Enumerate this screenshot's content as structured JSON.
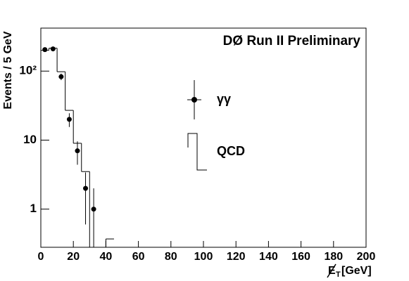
{
  "chart_data": {
    "type": "histogram",
    "title": "DØ Run II Preliminary",
    "y_label": "Events / 5 GeV",
    "x_label": {
      "symbol": "E",
      "subscript": "T",
      "unit": "[GeV]"
    },
    "xlim": [
      0,
      200
    ],
    "xticks": [
      0,
      20,
      40,
      60,
      80,
      100,
      120,
      140,
      160,
      180,
      200
    ],
    "ylim": [
      0.28,
      420
    ],
    "yticks": [
      1,
      10,
      {
        "value": 100,
        "label": "10²"
      }
    ],
    "log_y": true,
    "bins": [
      0,
      5,
      10,
      15,
      20,
      25,
      30,
      35,
      40,
      45
    ],
    "series": [
      {
        "name": "QCD",
        "color": "#000000",
        "kind": "step",
        "counts": [
          200,
          215,
          98,
          27,
          9,
          3.5,
          0,
          0,
          0.37
        ]
      },
      {
        "name": "γγ",
        "color": "#000000",
        "kind": "points",
        "x": [
          2.5,
          7.5,
          12.5,
          17.5,
          22.5,
          27.5,
          32.5
        ],
        "values": [
          205,
          210,
          83,
          20,
          7,
          2,
          1
        ],
        "errors": [
          14,
          14,
          9,
          4.5,
          2.6,
          1.4,
          1
        ]
      }
    ]
  }
}
